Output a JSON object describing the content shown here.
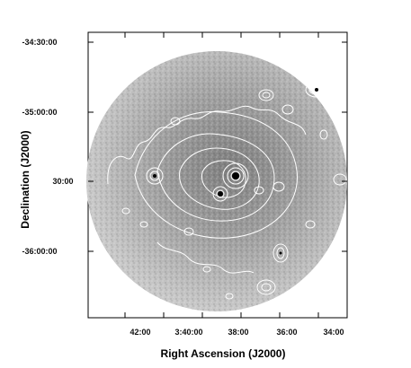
{
  "image": {
    "description_type": "X-ray surface brightness image with contour overlay",
    "frame_color": "#000000",
    "background_color": "#ffffff",
    "disk_color_light": "#c8c8c8",
    "disk_color_dark": "#8a8a8a",
    "contour_color": "#ffffff",
    "contour_highlight_color": "#000000"
  },
  "axes": {
    "x_title": "Right Ascension (J2000)",
    "y_title": "Declination (J2000)",
    "x_ticks": [
      "42:00",
      "3:40:00",
      "38:00",
      "36:00",
      "34:00"
    ],
    "y_ticks": [
      "-34:30:00",
      "-35:00:00",
      "30:00",
      "-36:00:00"
    ]
  }
}
